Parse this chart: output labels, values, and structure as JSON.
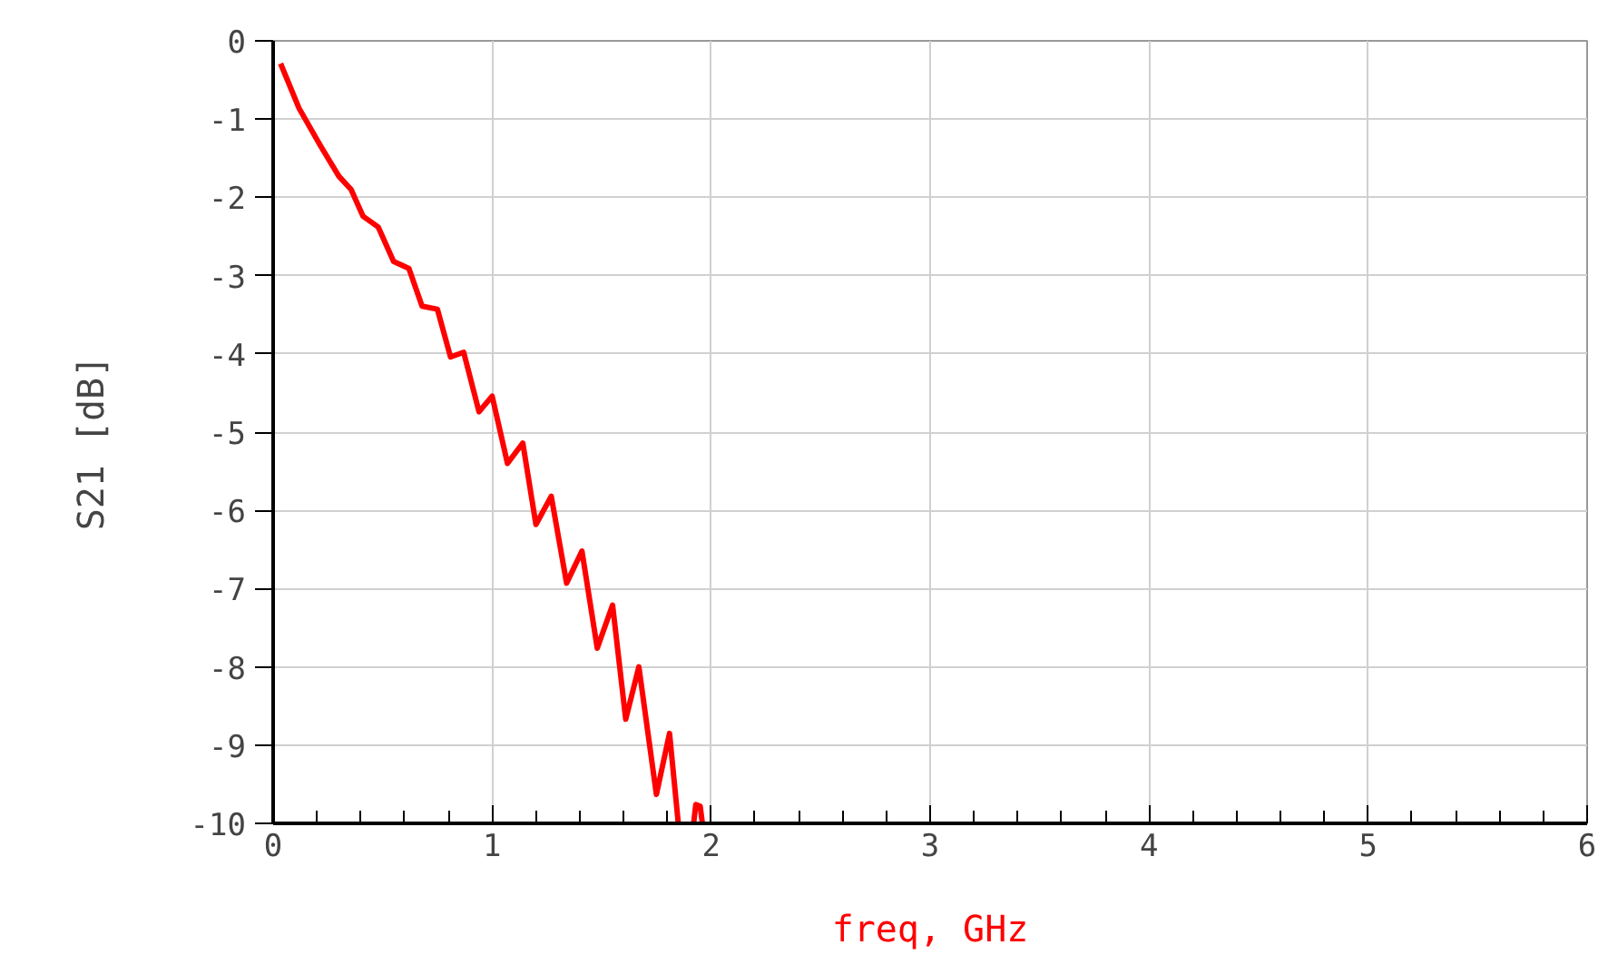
{
  "chart_data": {
    "type": "line",
    "xlabel": "freq, GHz",
    "ylabel": "S21  [dB]",
    "xlim": [
      0,
      6
    ],
    "ylim": [
      -10,
      0
    ],
    "xticks": [
      0,
      1,
      2,
      3,
      4,
      5,
      6
    ],
    "yticks": [
      -10,
      -9,
      -8,
      -7,
      -6,
      -5,
      -4,
      -3,
      -2,
      -1,
      0
    ],
    "grid": true,
    "line_style": "solid",
    "series": [
      {
        "color": "#ff0000",
        "x": [
          0.034,
          0.118,
          0.216,
          0.3,
          0.356,
          0.41,
          0.48,
          0.55,
          0.62,
          0.68,
          0.75,
          0.81,
          0.87,
          0.94,
          1.0,
          1.07,
          1.14,
          1.2,
          1.27,
          1.34,
          1.41,
          1.48,
          1.55,
          1.61,
          1.67,
          1.75,
          1.81,
          1.85,
          1.88,
          1.92,
          1.93,
          1.95,
          1.96
        ],
        "values": [
          -0.29,
          -0.86,
          -1.34,
          -1.73,
          -1.9,
          -2.24,
          -2.38,
          -2.82,
          -2.91,
          -3.39,
          -3.43,
          -4.04,
          -3.98,
          -4.74,
          -4.54,
          -5.4,
          -5.14,
          -6.18,
          -5.82,
          -6.93,
          -6.52,
          -7.76,
          -7.21,
          -8.67,
          -8.0,
          -9.63,
          -8.85,
          -10.0,
          null,
          -10.0,
          -9.76,
          -9.78,
          -10.0
        ]
      }
    ]
  }
}
